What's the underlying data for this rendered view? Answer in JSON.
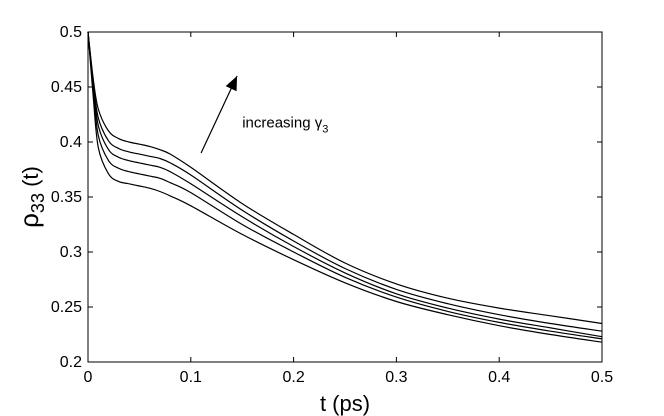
{
  "chart_data": {
    "type": "line",
    "title": "",
    "xlabel": "t (ps)",
    "ylabel_main": "ρ",
    "ylabel_sub": "33",
    "ylabel_tail": "(t)",
    "xlim": [
      0,
      0.5
    ],
    "ylim": [
      0.2,
      0.5
    ],
    "xticks": [
      0,
      0.1,
      0.2,
      0.3,
      0.4,
      0.5
    ],
    "xtick_labels": [
      "0",
      "0.1",
      "0.2",
      "0.3",
      "0.4",
      "0.5"
    ],
    "yticks": [
      0.2,
      0.25,
      0.3,
      0.35,
      0.4,
      0.45,
      0.5
    ],
    "ytick_labels": [
      "0.2",
      "0.25",
      "0.3",
      "0.35",
      "0.4",
      "0.45",
      "0.5"
    ],
    "grid": false,
    "line_color": "#000000",
    "annotation": {
      "text": "increasing γ",
      "sub": "3",
      "arrow_from": [
        0.11,
        0.39
      ],
      "arrow_to": [
        0.145,
        0.46
      ],
      "text_at": [
        0.15,
        0.413
      ]
    },
    "series": [
      {
        "name": "curve-1",
        "x": [
          0,
          0.005,
          0.01,
          0.02,
          0.03,
          0.04,
          0.05,
          0.06,
          0.07,
          0.08,
          0.1,
          0.15,
          0.2,
          0.25,
          0.3,
          0.35,
          0.4,
          0.45,
          0.5
        ],
        "y": [
          0.5,
          0.458,
          0.43,
          0.41,
          0.403,
          0.4,
          0.398,
          0.396,
          0.393,
          0.389,
          0.377,
          0.344,
          0.316,
          0.29,
          0.271,
          0.258,
          0.249,
          0.242,
          0.235
        ]
      },
      {
        "name": "curve-2",
        "x": [
          0,
          0.005,
          0.01,
          0.02,
          0.03,
          0.04,
          0.05,
          0.06,
          0.07,
          0.08,
          0.1,
          0.15,
          0.2,
          0.25,
          0.3,
          0.35,
          0.4,
          0.45,
          0.5
        ],
        "y": [
          0.5,
          0.455,
          0.422,
          0.401,
          0.394,
          0.391,
          0.389,
          0.387,
          0.385,
          0.381,
          0.37,
          0.338,
          0.31,
          0.285,
          0.266,
          0.253,
          0.243,
          0.235,
          0.228
        ]
      },
      {
        "name": "curve-3",
        "x": [
          0,
          0.005,
          0.01,
          0.02,
          0.03,
          0.04,
          0.05,
          0.06,
          0.07,
          0.08,
          0.1,
          0.15,
          0.2,
          0.25,
          0.3,
          0.35,
          0.4,
          0.45,
          0.5
        ],
        "y": [
          0.5,
          0.452,
          0.415,
          0.393,
          0.386,
          0.383,
          0.381,
          0.379,
          0.377,
          0.373,
          0.362,
          0.332,
          0.305,
          0.281,
          0.262,
          0.249,
          0.239,
          0.231,
          0.223
        ]
      },
      {
        "name": "curve-4",
        "x": [
          0,
          0.005,
          0.01,
          0.02,
          0.03,
          0.04,
          0.05,
          0.06,
          0.07,
          0.08,
          0.1,
          0.15,
          0.2,
          0.25,
          0.3,
          0.35,
          0.4,
          0.45,
          0.5
        ],
        "y": [
          0.5,
          0.448,
          0.406,
          0.383,
          0.376,
          0.373,
          0.371,
          0.369,
          0.367,
          0.363,
          0.354,
          0.325,
          0.3,
          0.277,
          0.259,
          0.246,
          0.236,
          0.228,
          0.221
        ]
      },
      {
        "name": "curve-5",
        "x": [
          0,
          0.005,
          0.01,
          0.02,
          0.03,
          0.04,
          0.05,
          0.06,
          0.07,
          0.08,
          0.1,
          0.15,
          0.2,
          0.25,
          0.3,
          0.35,
          0.4,
          0.45,
          0.5
        ],
        "y": [
          0.5,
          0.442,
          0.395,
          0.371,
          0.364,
          0.362,
          0.36,
          0.358,
          0.355,
          0.351,
          0.342,
          0.316,
          0.293,
          0.272,
          0.255,
          0.243,
          0.233,
          0.225,
          0.218
        ]
      }
    ]
  }
}
